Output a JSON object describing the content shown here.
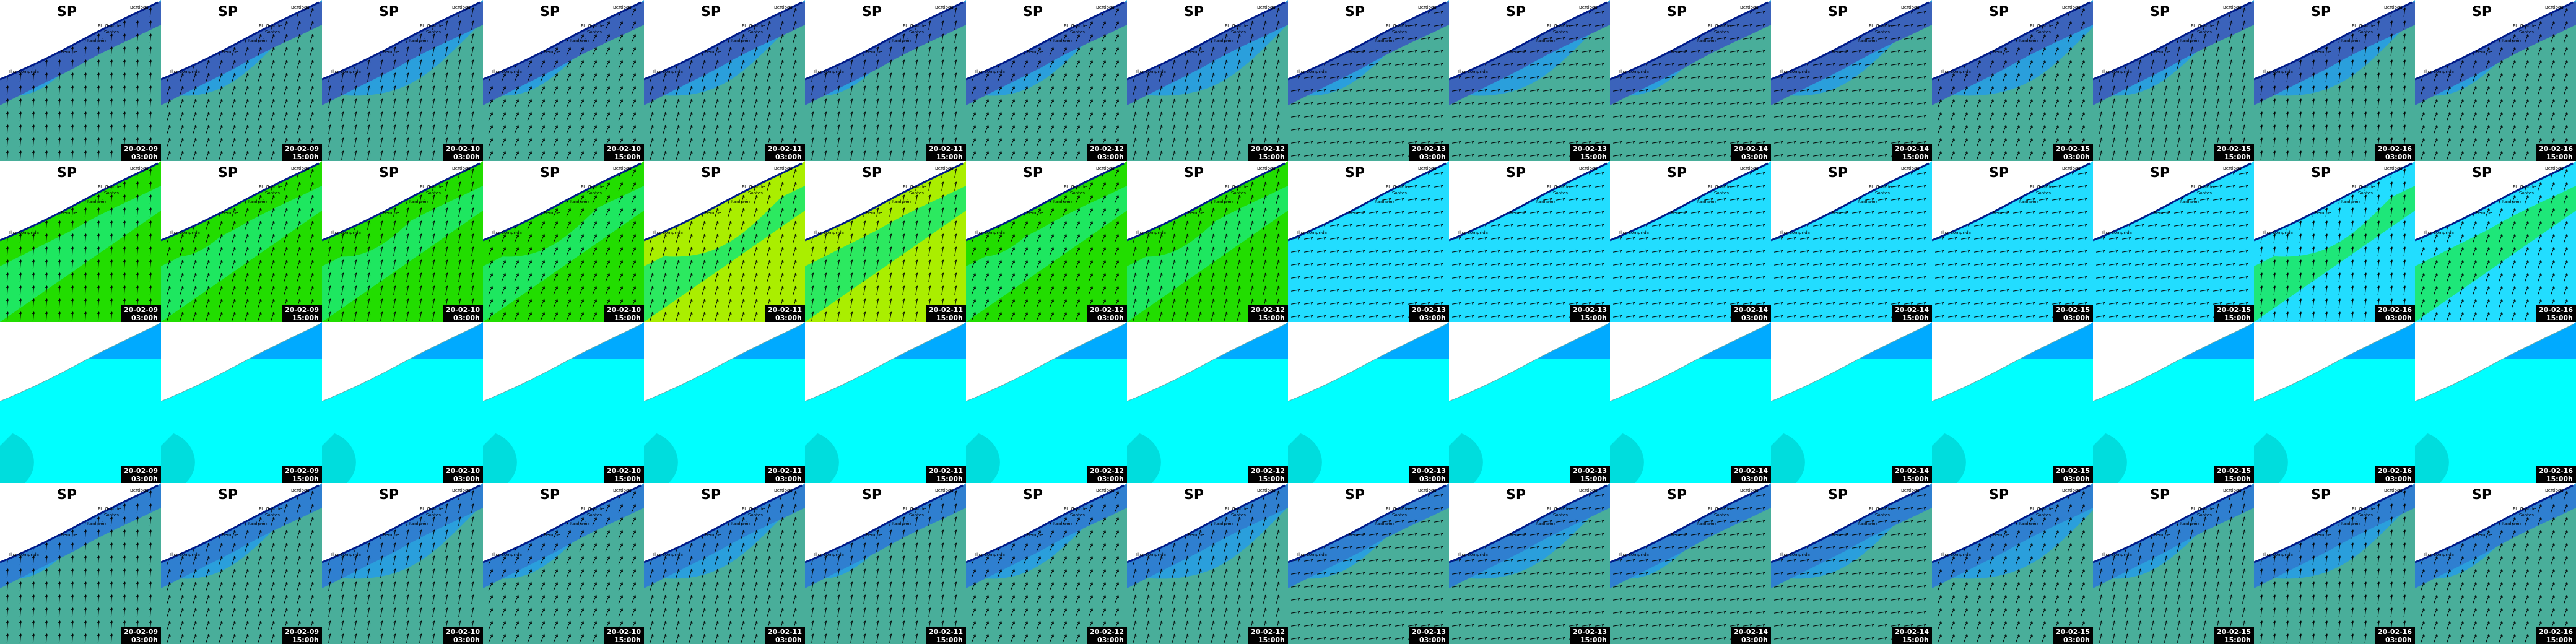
{
  "region_label": "SP",
  "places": [
    "Bertioga",
    "Pt. Grande",
    "Santos",
    "Itanhaém",
    "Peruíbe",
    "Ilha Comprida"
  ],
  "columns": [
    {
      "date": "20-02-09",
      "time": "03:00h"
    },
    {
      "date": "20-02-09",
      "time": "15:00h"
    },
    {
      "date": "20-02-10",
      "time": "03:00h"
    },
    {
      "date": "20-02-10",
      "time": "15:00h"
    },
    {
      "date": "20-02-11",
      "time": "03:00h"
    },
    {
      "date": "20-02-11",
      "time": "15:00h"
    },
    {
      "date": "20-02-12",
      "time": "03:00h"
    },
    {
      "date": "20-02-12",
      "time": "15:00h"
    },
    {
      "date": "20-02-13",
      "time": "03:00h"
    },
    {
      "date": "20-02-13",
      "time": "15:00h"
    },
    {
      "date": "20-02-14",
      "time": "03:00h"
    },
    {
      "date": "20-02-14",
      "time": "15:00h"
    },
    {
      "date": "20-02-15",
      "time": "03:00h"
    },
    {
      "date": "20-02-15",
      "time": "15:00h"
    },
    {
      "date": "20-02-16",
      "time": "03:00h"
    },
    {
      "date": "20-02-16",
      "time": "15:00h"
    }
  ]
}
